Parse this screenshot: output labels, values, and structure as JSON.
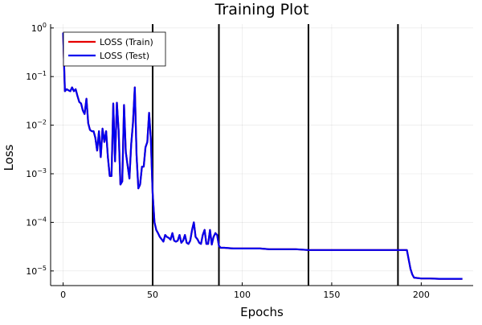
{
  "chart_data": {
    "type": "line",
    "title": "Training Plot",
    "xlabel": "Epochs",
    "ylabel": "Loss",
    "xlim": [
      -7,
      229
    ],
    "ylim": [
      5e-06,
      1.2
    ],
    "y_scale": "log",
    "grid": true,
    "legend_position": "top-left",
    "x_ticks": [
      0,
      50,
      100,
      150,
      200
    ],
    "x_tick_labels": [
      "0",
      "50",
      "100",
      "150",
      "200"
    ],
    "y_ticks": [
      {
        "value": 1e-05,
        "base": "10",
        "exp": "−5"
      },
      {
        "value": 0.0001,
        "base": "10",
        "exp": "−4"
      },
      {
        "value": 0.001,
        "base": "10",
        "exp": "−3"
      },
      {
        "value": 0.01,
        "base": "10",
        "exp": "−2"
      },
      {
        "value": 0.1,
        "base": "10",
        "exp": "−1"
      },
      {
        "value": 1,
        "base": "10",
        "exp": "0"
      }
    ],
    "vertical_lines": [
      50,
      87,
      137,
      187
    ],
    "series": [
      {
        "name": "LOSS (Train)",
        "color": "#e60000",
        "x": [
          0,
          1,
          2,
          3,
          4,
          5,
          6,
          7,
          8,
          9,
          10,
          11,
          12,
          13,
          14,
          15,
          16,
          17,
          18,
          19,
          20,
          21,
          22,
          23,
          24,
          25,
          26,
          27,
          28,
          29,
          30,
          31,
          32,
          33,
          34,
          35,
          36,
          37,
          38,
          39,
          40,
          41,
          42,
          43,
          44,
          45,
          46,
          47,
          48,
          49,
          50,
          51,
          52,
          53,
          54,
          55,
          56,
          57,
          58,
          59,
          60,
          61,
          62,
          63,
          64,
          65,
          66,
          67,
          68,
          69,
          70,
          71,
          72,
          73,
          74,
          75,
          76,
          77,
          78,
          79,
          80,
          81,
          82,
          83,
          84,
          85,
          86,
          87,
          88,
          90,
          95,
          100,
          105,
          110,
          115,
          120,
          125,
          130,
          137,
          140,
          150,
          160,
          170,
          180,
          187,
          190,
          191,
          192,
          193,
          194,
          195,
          196,
          200,
          205,
          210,
          215,
          220,
          223
        ],
        "y": [
          0.8,
          0.05,
          0.055,
          0.052,
          0.05,
          0.06,
          0.05,
          0.055,
          0.04,
          0.03,
          0.028,
          0.02,
          0.017,
          0.035,
          0.011,
          0.008,
          0.0075,
          0.0075,
          0.0055,
          0.003,
          0.0075,
          0.0022,
          0.0085,
          0.0045,
          0.0075,
          0.0022,
          0.0009,
          0.0009,
          0.028,
          0.0018,
          0.029,
          0.0075,
          0.0006,
          0.0007,
          0.026,
          0.0028,
          0.0015,
          0.0008,
          0.004,
          0.011,
          0.06,
          0.0024,
          0.0005,
          0.0006,
          0.0014,
          0.0014,
          0.0035,
          0.0045,
          0.018,
          0.005,
          0.0004,
          0.0001,
          7e-05,
          6e-05,
          5e-05,
          4.5e-05,
          4e-05,
          5.5e-05,
          5e-05,
          4.8e-05,
          4.4e-05,
          6e-05,
          4.2e-05,
          4e-05,
          4.2e-05,
          5.5e-05,
          3.8e-05,
          4.2e-05,
          5.5e-05,
          3.8e-05,
          3.6e-05,
          4.2e-05,
          7e-05,
          0.0001,
          5e-05,
          4.5e-05,
          3.8e-05,
          3.6e-05,
          5.5e-05,
          7e-05,
          3.6e-05,
          3.6e-05,
          7e-05,
          3.5e-05,
          5e-05,
          6e-05,
          5.5e-05,
          3.3e-05,
          3e-05,
          3e-05,
          2.9e-05,
          2.9e-05,
          2.9e-05,
          2.9e-05,
          2.8e-05,
          2.8e-05,
          2.8e-05,
          2.8e-05,
          2.7e-05,
          2.7e-05,
          2.7e-05,
          2.7e-05,
          2.7e-05,
          2.7e-05,
          2.7e-05,
          2.7e-05,
          2.7e-05,
          2.7e-05,
          1.7e-05,
          1.1e-05,
          8.5e-06,
          7.3e-06,
          7e-06,
          7e-06,
          6.9e-06,
          6.9e-06,
          6.9e-06,
          6.9e-06
        ]
      },
      {
        "name": "LOSS (Test)",
        "color": "#0000ee",
        "x": [
          0,
          1,
          2,
          3,
          4,
          5,
          6,
          7,
          8,
          9,
          10,
          11,
          12,
          13,
          14,
          15,
          16,
          17,
          18,
          19,
          20,
          21,
          22,
          23,
          24,
          25,
          26,
          27,
          28,
          29,
          30,
          31,
          32,
          33,
          34,
          35,
          36,
          37,
          38,
          39,
          40,
          41,
          42,
          43,
          44,
          45,
          46,
          47,
          48,
          49,
          50,
          51,
          52,
          53,
          54,
          55,
          56,
          57,
          58,
          59,
          60,
          61,
          62,
          63,
          64,
          65,
          66,
          67,
          68,
          69,
          70,
          71,
          72,
          73,
          74,
          75,
          76,
          77,
          78,
          79,
          80,
          81,
          82,
          83,
          84,
          85,
          86,
          87,
          88,
          90,
          95,
          100,
          105,
          110,
          115,
          120,
          125,
          130,
          137,
          140,
          150,
          160,
          170,
          180,
          187,
          190,
          191,
          192,
          193,
          194,
          195,
          196,
          200,
          205,
          210,
          215,
          220,
          223
        ],
        "y": [
          0.8,
          0.05,
          0.055,
          0.052,
          0.05,
          0.06,
          0.05,
          0.055,
          0.04,
          0.03,
          0.028,
          0.02,
          0.017,
          0.035,
          0.011,
          0.008,
          0.0075,
          0.0075,
          0.0055,
          0.003,
          0.0075,
          0.0022,
          0.0085,
          0.0045,
          0.0075,
          0.0022,
          0.0009,
          0.0009,
          0.028,
          0.0018,
          0.029,
          0.0075,
          0.0006,
          0.0007,
          0.026,
          0.0028,
          0.0015,
          0.0008,
          0.004,
          0.011,
          0.06,
          0.0024,
          0.0005,
          0.0006,
          0.0014,
          0.0014,
          0.0035,
          0.0045,
          0.018,
          0.005,
          0.0004,
          0.0001,
          7e-05,
          6e-05,
          5e-05,
          4.5e-05,
          4e-05,
          5.5e-05,
          5e-05,
          4.8e-05,
          4.4e-05,
          6e-05,
          4.2e-05,
          4e-05,
          4.2e-05,
          5.5e-05,
          3.8e-05,
          4.2e-05,
          5.5e-05,
          3.8e-05,
          3.6e-05,
          4.2e-05,
          7e-05,
          0.0001,
          5e-05,
          4.5e-05,
          3.8e-05,
          3.6e-05,
          5.5e-05,
          7e-05,
          3.6e-05,
          3.6e-05,
          7e-05,
          3.5e-05,
          5e-05,
          6e-05,
          5.5e-05,
          3.3e-05,
          3e-05,
          3e-05,
          2.9e-05,
          2.9e-05,
          2.9e-05,
          2.9e-05,
          2.8e-05,
          2.8e-05,
          2.8e-05,
          2.8e-05,
          2.7e-05,
          2.7e-05,
          2.7e-05,
          2.7e-05,
          2.7e-05,
          2.7e-05,
          2.7e-05,
          2.7e-05,
          2.7e-05,
          2.7e-05,
          1.7e-05,
          1.1e-05,
          8.5e-06,
          7.3e-06,
          7e-06,
          7e-06,
          6.9e-06,
          6.9e-06,
          6.9e-06,
          6.9e-06
        ]
      }
    ]
  }
}
